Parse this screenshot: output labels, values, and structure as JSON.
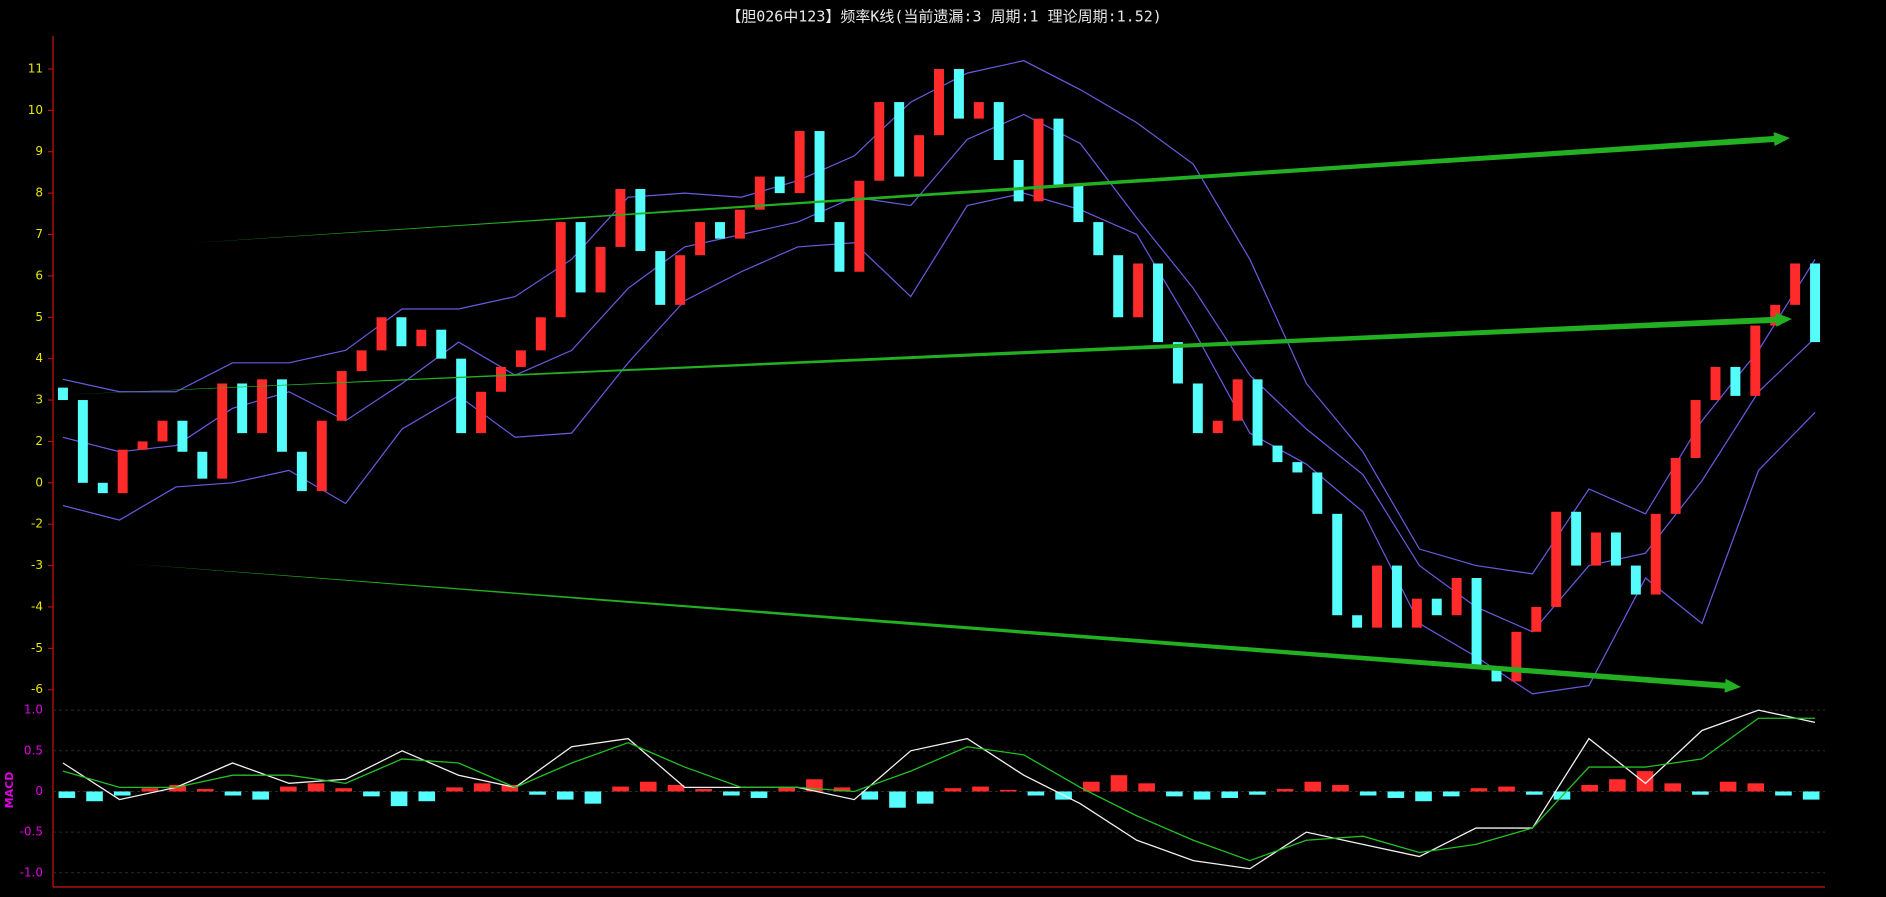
{
  "chart_data": [
    {
      "type": "candlestick",
      "title": "【胆026中123】频率K线(当前遗漏:3 周期:1 理论周期:1.52)",
      "open": [
        3.3,
        3.0,
        0.0,
        -0.5,
        1.6,
        2.0,
        2.5,
        1.5,
        0.2,
        3.4,
        2.2,
        3.5,
        1.5,
        -0.4,
        2.5,
        3.7,
        4.2,
        5.0,
        4.3,
        4.7,
        4.0,
        2.2,
        3.2,
        3.8,
        4.2,
        5.0,
        7.3,
        5.6,
        6.7,
        8.1,
        6.6,
        5.3,
        6.5,
        7.3,
        6.9,
        7.6,
        8.4,
        8.0,
        9.5,
        7.3,
        6.1,
        8.3,
        10.2,
        8.4,
        9.4,
        11.0,
        9.8,
        10.2,
        8.8,
        7.8,
        9.8,
        8.2,
        7.3,
        6.5,
        5.0,
        6.3,
        4.4,
        3.4,
        2.2,
        2.5,
        3.5,
        1.8,
        1.0,
        0.5,
        -1.5,
        -4.2,
        -4.5,
        -3.0,
        -4.5,
        -3.8,
        -4.2,
        -3.3,
        -5.5,
        -5.8,
        -4.6,
        -4.0,
        -1.4,
        -3.0,
        -2.2,
        -3.0,
        -3.7,
        -1.5,
        1.2,
        3.0,
        3.8,
        3.1,
        4.8,
        5.3,
        6.3
      ],
      "close": [
        3.0,
        0.0,
        -0.5,
        1.6,
        2.0,
        2.5,
        1.5,
        0.2,
        3.4,
        2.2,
        3.5,
        1.5,
        -0.4,
        2.5,
        3.7,
        4.2,
        5.0,
        4.3,
        4.7,
        4.0,
        2.2,
        3.2,
        3.8,
        4.2,
        5.0,
        7.3,
        5.6,
        6.7,
        8.1,
        6.6,
        5.3,
        6.5,
        7.3,
        6.9,
        7.6,
        8.4,
        8.0,
        9.5,
        7.3,
        6.1,
        8.3,
        10.2,
        8.4,
        9.4,
        11.0,
        9.8,
        10.2,
        8.8,
        7.8,
        9.8,
        8.2,
        7.3,
        6.5,
        5.0,
        6.3,
        4.4,
        3.4,
        2.2,
        2.5,
        3.5,
        1.8,
        1.0,
        0.5,
        -1.5,
        -4.2,
        -4.5,
        -3.0,
        -4.5,
        -3.8,
        -4.2,
        -3.3,
        -5.5,
        -5.8,
        -4.6,
        -4.0,
        -1.4,
        -3.0,
        -2.2,
        -3.0,
        -3.7,
        -1.5,
        1.2,
        3.0,
        3.8,
        3.1,
        4.8,
        5.3,
        6.3,
        4.4
      ],
      "up_color": "#ff2a2a",
      "down_color": "#54fcfc",
      "series": [
        {
          "color": "#6a5be0",
          "values": [
            3.5,
            3.2,
            3.2,
            3.9,
            3.9,
            4.2,
            5.2,
            5.2,
            5.5,
            6.4,
            7.9,
            8.0,
            7.9,
            8.3,
            8.9,
            10.2,
            10.9,
            11.2,
            10.5,
            9.7,
            8.7,
            6.4,
            3.4,
            1.5,
            -2.6,
            -3.0,
            -3.2,
            -0.3,
            -1.5,
            2.5,
            4.2,
            6.4
          ]
        },
        {
          "color": "#6a5be0",
          "values": [
            2.1,
            1.5,
            1.8,
            2.8,
            3.2,
            2.5,
            3.4,
            4.4,
            3.6,
            4.2,
            5.7,
            6.7,
            7.0,
            7.3,
            7.9,
            7.7,
            9.3,
            9.9,
            9.2,
            7.4,
            5.7,
            3.6,
            2.3,
            0.4,
            -3.0,
            -4.0,
            -4.6,
            -3.0,
            -2.7,
            0.1,
            3.2,
            4.5
          ]
        },
        {
          "color": "#6a5be0",
          "values": [
            -1.1,
            -1.8,
            -0.2,
            0.0,
            0.6,
            -1.0,
            2.3,
            3.1,
            2.1,
            2.2,
            3.9,
            5.4,
            6.1,
            6.7,
            6.8,
            5.5,
            7.7,
            8.0,
            7.6,
            7.0,
            4.7,
            2.2,
            0.9,
            -1.4,
            -4.4,
            -5.2,
            -6.1,
            -5.9,
            -3.3,
            -4.4,
            0.6,
            2.7
          ]
        }
      ],
      "ylim": [
        -6.2,
        11.7
      ],
      "yticks": [
        11,
        10,
        9,
        8,
        7,
        6,
        5,
        4,
        3,
        2,
        0,
        -2,
        -3,
        -4,
        -5,
        -6
      ]
    },
    {
      "type": "macd",
      "ylabel": "MACD",
      "series": [
        {
          "color": "#f0f0f0",
          "values": [
            0.35,
            -0.1,
            0.05,
            0.35,
            0.1,
            0.15,
            0.5,
            0.2,
            0.05,
            0.55,
            0.65,
            0.05,
            0.05,
            0.05,
            -0.1,
            0.5,
            0.65,
            0.2,
            -0.15,
            -0.6,
            -0.85,
            -0.95,
            -0.5,
            -0.65,
            -0.8,
            -0.45,
            -0.45,
            0.65,
            0.1,
            0.75,
            1.0,
            0.85
          ]
        },
        {
          "color": "#22c022",
          "values": [
            0.25,
            0.05,
            0.05,
            0.2,
            0.2,
            0.1,
            0.4,
            0.35,
            0.05,
            0.35,
            0.6,
            0.3,
            0.05,
            0.05,
            0.0,
            0.25,
            0.55,
            0.45,
            0.05,
            -0.3,
            -0.6,
            -0.85,
            -0.6,
            -0.55,
            -0.75,
            -0.65,
            -0.45,
            0.3,
            0.3,
            0.4,
            0.9,
            0.9
          ]
        }
      ],
      "histogram": [
        -0.08,
        -0.12,
        -0.05,
        0.04,
        0.08,
        0.03,
        -0.05,
        -0.1,
        0.06,
        0.1,
        0.04,
        -0.06,
        -0.18,
        -0.12,
        0.05,
        0.1,
        0.08,
        -0.04,
        -0.1,
        -0.15,
        0.06,
        0.12,
        0.08,
        0.03,
        -0.05,
        -0.08,
        0.05,
        0.15,
        0.05,
        -0.1,
        -0.2,
        -0.15,
        0.04,
        0.06,
        0.02,
        -0.05,
        -0.1,
        0.12,
        0.2,
        0.1,
        -0.06,
        -0.1,
        -0.08,
        -0.04,
        0.03,
        0.12,
        0.08,
        -0.05,
        -0.08,
        -0.12,
        -0.06,
        0.04,
        0.06,
        -0.04,
        -0.1,
        0.08,
        0.15,
        0.25,
        0.1,
        -0.04,
        0.12,
        0.1,
        -0.05,
        -0.1
      ],
      "up_color": "#ff2a2a",
      "down_color": "#54fcfc",
      "ylim": [
        -1.15,
        1.1
      ],
      "yticks": [
        {
          "value": 1.0,
          "label": "1.0"
        },
        0.5,
        0,
        -0.5,
        {
          "value": -1.0,
          "label": "-1.0"
        }
      ],
      "grid": true
    }
  ]
}
